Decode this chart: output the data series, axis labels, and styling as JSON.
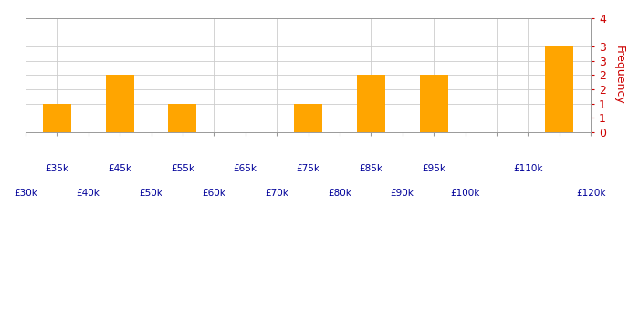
{
  "bin_edges": [
    30000,
    40000,
    50000,
    60000,
    70000,
    80000,
    90000,
    100000,
    110000,
    120000
  ],
  "frequencies": [
    1,
    2,
    1,
    0,
    1,
    2,
    2,
    0,
    3
  ],
  "bar_color": "#FFA500",
  "ylabel": "Frequency",
  "ylim": [
    0,
    4
  ],
  "background_color": "#FFFFFF",
  "grid_color": "#CCCCCC",
  "label_color": "#000099",
  "tick_color_y": "#CC0000",
  "row1_vals": [
    35000,
    45000,
    55000,
    65000,
    75000,
    85000,
    95000,
    110000
  ],
  "row2_vals": [
    30000,
    40000,
    50000,
    60000,
    70000,
    80000,
    90000,
    100000,
    120000
  ],
  "ytick_vals": [
    0,
    0.5,
    1,
    1.5,
    2,
    2.5,
    3,
    4
  ],
  "ytick_labels": [
    "0",
    "1",
    "1",
    "2",
    "2",
    "3",
    "3",
    "4"
  ]
}
